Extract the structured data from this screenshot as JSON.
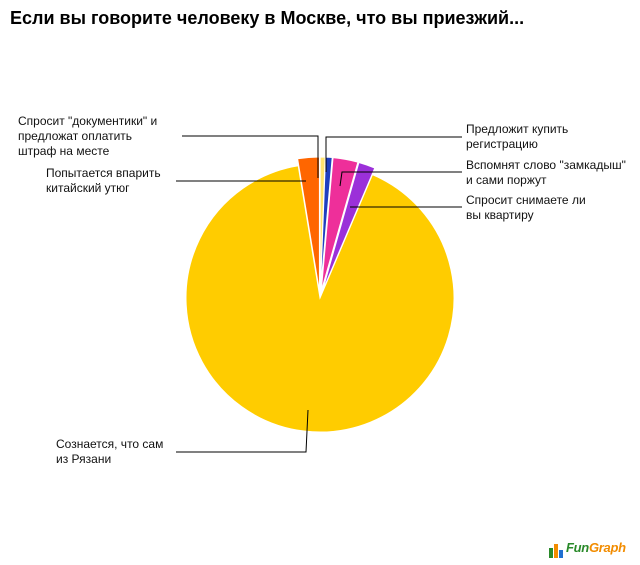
{
  "chart_data": {
    "type": "pie",
    "title": "Если вы говорите человеку в Москве, что вы приезжий...",
    "slices": [
      {
        "name": "Спросит \"документики\" и предложат оплатить штраф на месте",
        "lines": [
          "Спросит \"документики\" и",
          "предложат оплатить",
          "штраф на месте"
        ],
        "value": 0.6,
        "color": "#ffe36e"
      },
      {
        "name": "Предложит купить регистрацию",
        "lines": [
          "Предложит купить",
          "регистрацию"
        ],
        "value": 0.8,
        "color": "#1f3fbf"
      },
      {
        "name": "Вспомнят слово \"замкадыш\" и сами поржут",
        "lines": [
          "Вспомнят слово \"замкадыш\"",
          "и сами поржут"
        ],
        "value": 3.0,
        "color": "#ee2f9a"
      },
      {
        "name": "Спросит снимаете ли вы квартиру",
        "lines": [
          "Спросит снимаете ли",
          "вы квартиру"
        ],
        "value": 2.0,
        "color": "#9b30d9"
      },
      {
        "name": "Сознается, что сам из Рязани",
        "lines": [
          "Сознается, что сам",
          "из Рязани"
        ],
        "value": 91.0,
        "color": "#ffcc00"
      },
      {
        "name": "Попытается впарить китайский утюг",
        "lines": [
          "Попытается впарить",
          "китайский утюг"
        ],
        "value": 2.6,
        "color": "#ff6600"
      }
    ]
  },
  "logo": {
    "text_a": "Fun",
    "text_b": "Graph"
  }
}
